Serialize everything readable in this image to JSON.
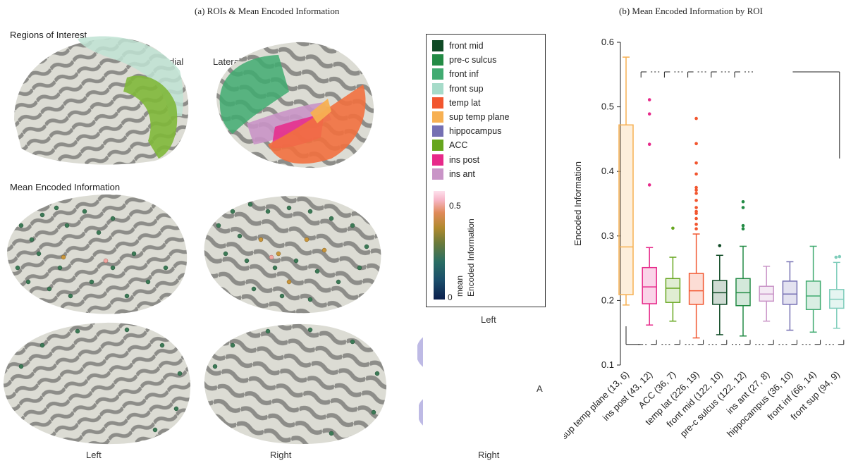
{
  "titles": {
    "panel_a": "(a) ROIs & Mean Encoded Information",
    "panel_b": "(b) Mean Encoded Information by ROI"
  },
  "labels": {
    "regions_of_interest": "Regions of Interest",
    "mean_encoded_information": "Mean Encoded Information",
    "medial": "Medial",
    "lateral": "Lateral",
    "left_bottom": "Left",
    "right_bottom": "Right",
    "hippo_left": "Left",
    "hippo_right": "Right",
    "arrow_a": "A"
  },
  "legend": {
    "items": [
      {
        "label": "front mid",
        "color": "#0f4a25"
      },
      {
        "label": "pre-c sulcus",
        "color": "#238b45"
      },
      {
        "label": "front inf",
        "color": "#41ab71"
      },
      {
        "label": "front sup",
        "color": "#a6dbc9"
      },
      {
        "label": "temp lat",
        "color": "#f2562f"
      },
      {
        "label": "sup temp plane",
        "color": "#f7b052"
      },
      {
        "label": "hippocampus",
        "color": "#7570b3"
      },
      {
        "label": "ACC",
        "color": "#66a61e"
      },
      {
        "label": "ins post",
        "color": "#e7298a"
      },
      {
        "label": "ins ant",
        "color": "#c994c7"
      }
    ],
    "colorbar": {
      "max_tick": "0.5",
      "min_tick": "0",
      "label_lines": [
        "mean",
        "Encoded  Information"
      ]
    }
  },
  "chart_data": {
    "type": "box",
    "title": "(b) Mean Encoded Information by ROI",
    "ylabel": "Encoded Information",
    "ylim": [
      0.1,
      0.6
    ],
    "yticks": [
      "0.1",
      "0.2",
      "0.3",
      "0.4",
      "0.5",
      "0.6"
    ],
    "categories": [
      "sup temp plane (13, 6)",
      "ins post (43, 12)",
      "ACC (36, 7)",
      "temp lat (226, 19)",
      "front mid (122, 10)",
      "pre-c sulcus (122, 12)",
      "ins ant (27, 8)",
      "hippocampus (36, 10)",
      "front inf (66, 14)",
      "front sup (94, 9)"
    ],
    "boxes": [
      {
        "color": "#f7b052",
        "whisker_low": 0.193,
        "q1": 0.209,
        "median": 0.283,
        "q3": 0.472,
        "whisker_high": 0.577,
        "outliers": []
      },
      {
        "color": "#e7298a",
        "whisker_low": 0.162,
        "q1": 0.195,
        "median": 0.221,
        "q3": 0.251,
        "whisker_high": 0.282,
        "outliers": [
          0.379,
          0.442,
          0.489,
          0.511
        ]
      },
      {
        "color": "#66a61e",
        "whisker_low": 0.168,
        "q1": 0.197,
        "median": 0.219,
        "q3": 0.234,
        "whisker_high": 0.267,
        "outliers": [
          0.312
        ]
      },
      {
        "color": "#f2562f",
        "whisker_low": 0.142,
        "q1": 0.194,
        "median": 0.215,
        "q3": 0.242,
        "whisker_high": 0.303,
        "outliers": [
          0.311,
          0.318,
          0.327,
          0.335,
          0.338,
          0.344,
          0.355,
          0.366,
          0.371,
          0.375,
          0.396,
          0.413,
          0.443,
          0.482
        ]
      },
      {
        "color": "#0f4a25",
        "whisker_low": 0.147,
        "q1": 0.194,
        "median": 0.212,
        "q3": 0.231,
        "whisker_high": 0.27,
        "outliers": [
          0.285
        ]
      },
      {
        "color": "#238b45",
        "whisker_low": 0.145,
        "q1": 0.192,
        "median": 0.212,
        "q3": 0.234,
        "whisker_high": 0.284,
        "outliers": [
          0.311,
          0.316,
          0.344,
          0.353
        ]
      },
      {
        "color": "#c994c7",
        "whisker_low": 0.168,
        "q1": 0.199,
        "median": 0.21,
        "q3": 0.222,
        "whisker_high": 0.253,
        "outliers": []
      },
      {
        "color": "#7570b3",
        "whisker_low": 0.154,
        "q1": 0.194,
        "median": 0.21,
        "q3": 0.23,
        "whisker_high": 0.26,
        "outliers": []
      },
      {
        "color": "#41ab71",
        "whisker_low": 0.151,
        "q1": 0.186,
        "median": 0.207,
        "q3": 0.23,
        "whisker_high": 0.284,
        "outliers": []
      },
      {
        "color": "#7fcdbb",
        "whisker_low": 0.157,
        "q1": 0.188,
        "median": 0.202,
        "q3": 0.217,
        "whisker_high": 0.259,
        "outliers": [
          0.267,
          0.268
        ]
      }
    ]
  }
}
